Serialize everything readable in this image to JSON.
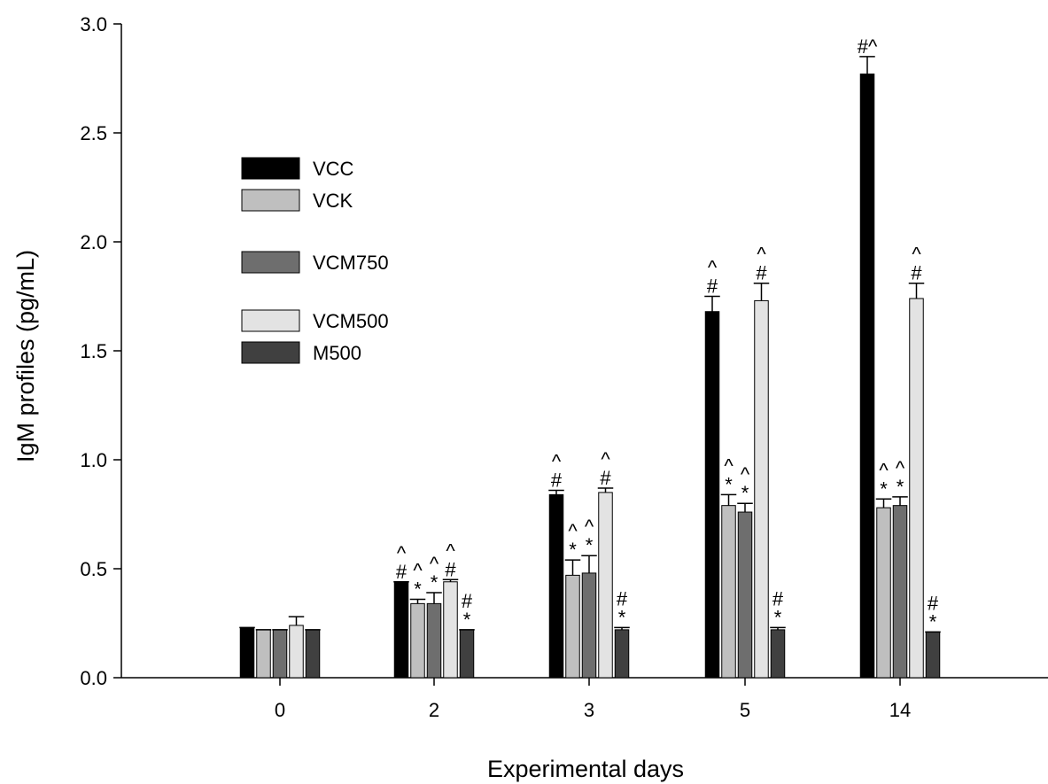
{
  "chart_data": {
    "type": "bar",
    "title": "",
    "xlabel": "Experimental days",
    "ylabel": "IgM profiles (pg/mL)",
    "ylim": [
      0,
      3.0
    ],
    "yticks": [
      "0.0",
      "0.5",
      "1.0",
      "1.5",
      "2.0",
      "2.5",
      "3.0"
    ],
    "categories": [
      "0",
      "2",
      "3",
      "5",
      "14"
    ],
    "grid": false,
    "legend_position": "upper-left",
    "series": [
      {
        "name": "VCC",
        "color": "#000000",
        "values": [
          0.23,
          0.44,
          0.84,
          1.68,
          2.77
        ],
        "errors": [
          0.0,
          0.0,
          0.02,
          0.07,
          0.08
        ],
        "annotations": [
          [],
          [
            "^",
            "#"
          ],
          [
            "^",
            "#"
          ],
          [
            "^",
            "#"
          ],
          [
            "#^"
          ]
        ]
      },
      {
        "name": "VCK",
        "color": "#bfbfbf",
        "values": [
          0.22,
          0.34,
          0.47,
          0.79,
          0.78
        ],
        "errors": [
          0.0,
          0.02,
          0.07,
          0.05,
          0.04
        ],
        "annotations": [
          [],
          [
            "^",
            "*"
          ],
          [
            "^",
            "*"
          ],
          [
            "^",
            "*"
          ],
          [
            "^",
            "*"
          ]
        ]
      },
      {
        "name": "VCM750",
        "color": "#6e6e6e",
        "values": [
          0.22,
          0.34,
          0.48,
          0.76,
          0.79
        ],
        "errors": [
          0.0,
          0.05,
          0.08,
          0.04,
          0.04
        ],
        "annotations": [
          [],
          [
            "^",
            "*"
          ],
          [
            "^",
            "*"
          ],
          [
            "^",
            "*"
          ],
          [
            "^",
            "*"
          ]
        ]
      },
      {
        "name": "VCM500",
        "color": "#e3e3e3",
        "values": [
          0.24,
          0.44,
          0.85,
          1.73,
          1.74
        ],
        "errors": [
          0.04,
          0.01,
          0.02,
          0.08,
          0.07
        ],
        "annotations": [
          [],
          [
            "^",
            "#"
          ],
          [
            "^",
            "#"
          ],
          [
            "^",
            "#"
          ],
          [
            "^",
            "#"
          ]
        ]
      },
      {
        "name": "M500",
        "color": "#404040",
        "values": [
          0.22,
          0.22,
          0.22,
          0.22,
          0.21
        ],
        "errors": [
          0.0,
          0.0,
          0.01,
          0.01,
          0.0
        ],
        "annotations": [
          [],
          [
            "#",
            "*"
          ],
          [
            "#",
            "*"
          ],
          [
            "#",
            "*"
          ],
          [
            "#",
            "*"
          ]
        ]
      }
    ]
  }
}
